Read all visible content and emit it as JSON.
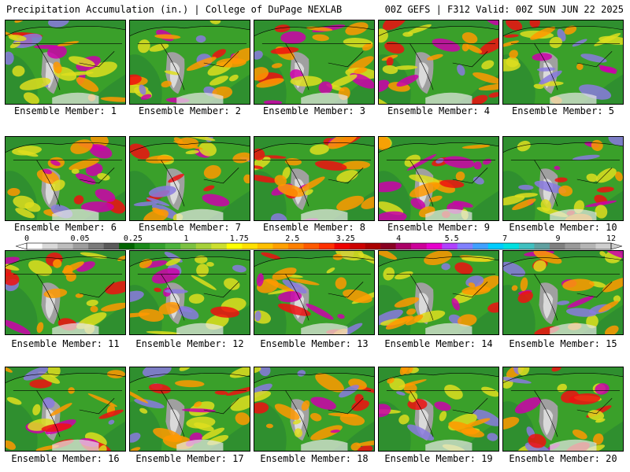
{
  "header": {
    "left": "Precipitation Accumulation (in.) | College of DuPage NEXLAB",
    "right": "00Z GEFS | F312 Valid: 00Z SUN JUN 22 2025"
  },
  "members": [
    "Ensemble Member: 1",
    "Ensemble Member: 2",
    "Ensemble Member: 3",
    "Ensemble Member: 4",
    "Ensemble Member: 5",
    "Ensemble Member: 6",
    "Ensemble Member: 7",
    "Ensemble Member: 8",
    "Ensemble Member: 9",
    "Ensemble Member: 10",
    "Ensemble Member: 11",
    "Ensemble Member: 12",
    "Ensemble Member: 13",
    "Ensemble Member: 14",
    "Ensemble Member: 15",
    "Ensemble Member: 16",
    "Ensemble Member: 17",
    "Ensemble Member: 18",
    "Ensemble Member: 19",
    "Ensemble Member: 20"
  ],
  "colorbar": {
    "labels": [
      "0",
      "0.05",
      "0.25",
      "1",
      "1.75",
      "2.5",
      "3.25",
      "4",
      "5.5",
      "7",
      "9",
      "12"
    ],
    "colors": [
      "#ffffff",
      "#d9d9d9",
      "#bdbdbd",
      "#9e9e9e",
      "#7a7a7a",
      "#5a5a5a",
      "#006400",
      "#1a8a1a",
      "#33a02c",
      "#4db33d",
      "#7cc242",
      "#a6d13a",
      "#ccdf2e",
      "#ffff00",
      "#ffe000",
      "#ffc000",
      "#ffa000",
      "#ff8000",
      "#ff5a00",
      "#ff3000",
      "#ee0000",
      "#cc0000",
      "#aa0000",
      "#880022",
      "#aa0066",
      "#cc0099",
      "#e600cc",
      "#b040ff",
      "#8080ff",
      "#40a0ff",
      "#00ccff",
      "#00e0e0",
      "#40c0c0",
      "#60a0a0",
      "#808080",
      "#9a9a9a",
      "#b4b4b4",
      "#cecece"
    ]
  },
  "map_palette": {
    "ocean": "#2f8f2f",
    "land": "#3aa02a",
    "dry": "#a0a0a0",
    "light": "#e8e8e8",
    "moderate": "#dede1e",
    "orange": "#ff9900",
    "heavy": "#ee1010",
    "extreme": "#cc00aa",
    "purple": "#8a7adf",
    "borders": "#000000"
  }
}
